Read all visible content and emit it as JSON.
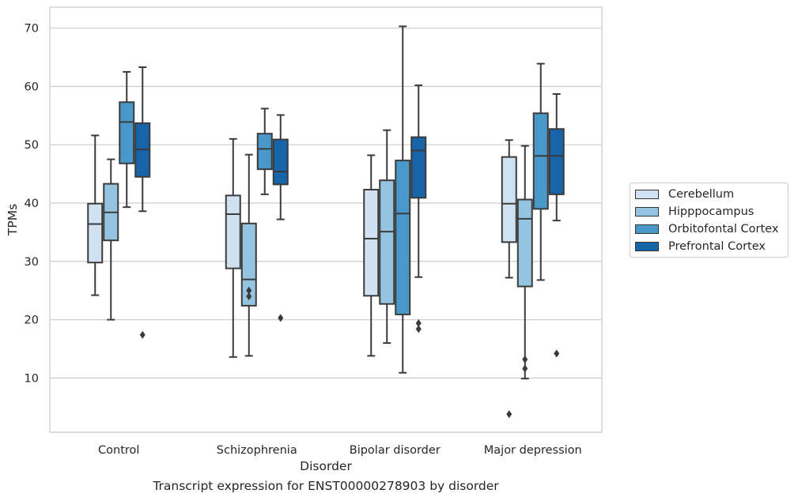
{
  "caption": "Transcript expression for ENST00000278903 by disorder",
  "chart_data": {
    "type": "boxplot",
    "xlabel": "Disorder",
    "ylabel": "TPMs",
    "ylim": [
      0.7,
      73.6
    ],
    "yticks": [
      10,
      20,
      30,
      40,
      50,
      60,
      70
    ],
    "grid": "horizontal",
    "legend_position": "right",
    "categories": [
      "Control",
      "Schizophrenia",
      "Bipolar disorder",
      "Major depression"
    ],
    "series": [
      {
        "name": "Cerebellum",
        "color": "#d0e1f2",
        "boxes": [
          {
            "whisker_low": 24.2,
            "q1": 29.8,
            "median": 36.4,
            "q3": 39.9,
            "whisker_high": 51.6,
            "outliers": []
          },
          {
            "whisker_low": 13.6,
            "q1": 28.8,
            "median": 38.1,
            "q3": 41.3,
            "whisker_high": 51.0,
            "outliers": []
          },
          {
            "whisker_low": 13.8,
            "q1": 24.1,
            "median": 33.9,
            "q3": 42.3,
            "whisker_high": 48.2,
            "outliers": []
          },
          {
            "whisker_low": 27.2,
            "q1": 33.3,
            "median": 39.9,
            "q3": 47.9,
            "whisker_high": 50.8,
            "outliers": [
              3.8
            ]
          }
        ]
      },
      {
        "name": "Hipppocampus",
        "color": "#94c4df",
        "boxes": [
          {
            "whisker_low": 20.0,
            "q1": 33.6,
            "median": 38.4,
            "q3": 43.3,
            "whisker_high": 47.5,
            "outliers": []
          },
          {
            "whisker_low": 13.8,
            "q1": 22.4,
            "median": 26.9,
            "q3": 36.5,
            "whisker_high": 48.3,
            "outliers": [
              24.0,
              25.0
            ]
          },
          {
            "whisker_low": 16.0,
            "q1": 22.7,
            "median": 35.1,
            "q3": 43.9,
            "whisker_high": 52.5,
            "outliers": []
          },
          {
            "whisker_low": 9.9,
            "q1": 25.7,
            "median": 37.3,
            "q3": 40.6,
            "whisker_high": 49.8,
            "outliers": [
              11.6,
              13.2
            ]
          }
        ]
      },
      {
        "name": "Orbitofontal Cortex",
        "color": "#4a98c9",
        "boxes": [
          {
            "whisker_low": 39.3,
            "q1": 46.8,
            "median": 53.9,
            "q3": 57.3,
            "whisker_high": 62.5,
            "outliers": []
          },
          {
            "whisker_low": 41.5,
            "q1": 45.8,
            "median": 49.3,
            "q3": 51.9,
            "whisker_high": 56.2,
            "outliers": []
          },
          {
            "whisker_low": 10.9,
            "q1": 20.9,
            "median": 38.2,
            "q3": 47.3,
            "whisker_high": 70.3,
            "outliers": []
          },
          {
            "whisker_low": 26.8,
            "q1": 39.0,
            "median": 48.1,
            "q3": 55.4,
            "whisker_high": 63.9,
            "outliers": []
          }
        ]
      },
      {
        "name": "Prefrontal Cortex",
        "color": "#1764ab",
        "boxes": [
          {
            "whisker_low": 38.6,
            "q1": 44.5,
            "median": 49.2,
            "q3": 53.7,
            "whisker_high": 63.3,
            "outliers": [
              17.4
            ]
          },
          {
            "whisker_low": 37.2,
            "q1": 43.2,
            "median": 45.4,
            "q3": 50.9,
            "whisker_high": 55.1,
            "outliers": [
              20.3
            ]
          },
          {
            "whisker_low": 27.3,
            "q1": 40.9,
            "median": 49.0,
            "q3": 51.3,
            "whisker_high": 60.2,
            "outliers": [
              18.4,
              19.4
            ]
          },
          {
            "whisker_low": 37.0,
            "q1": 41.5,
            "median": 48.1,
            "q3": 52.7,
            "whisker_high": 58.7,
            "outliers": [
              14.2
            ]
          }
        ]
      }
    ]
  }
}
